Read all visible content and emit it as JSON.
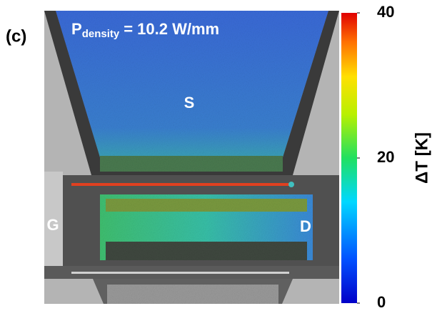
{
  "panel_label": "(c)",
  "annotation": {
    "symbol": "P",
    "subscript": "density",
    "text": "= 10.2 W/mm"
  },
  "regions": {
    "source": "S",
    "gate": "G",
    "drain": "D"
  },
  "colorbar": {
    "label": "ΔT [K]",
    "lim": [
      0,
      40
    ],
    "ticks": [
      0,
      20,
      40
    ]
  }
}
